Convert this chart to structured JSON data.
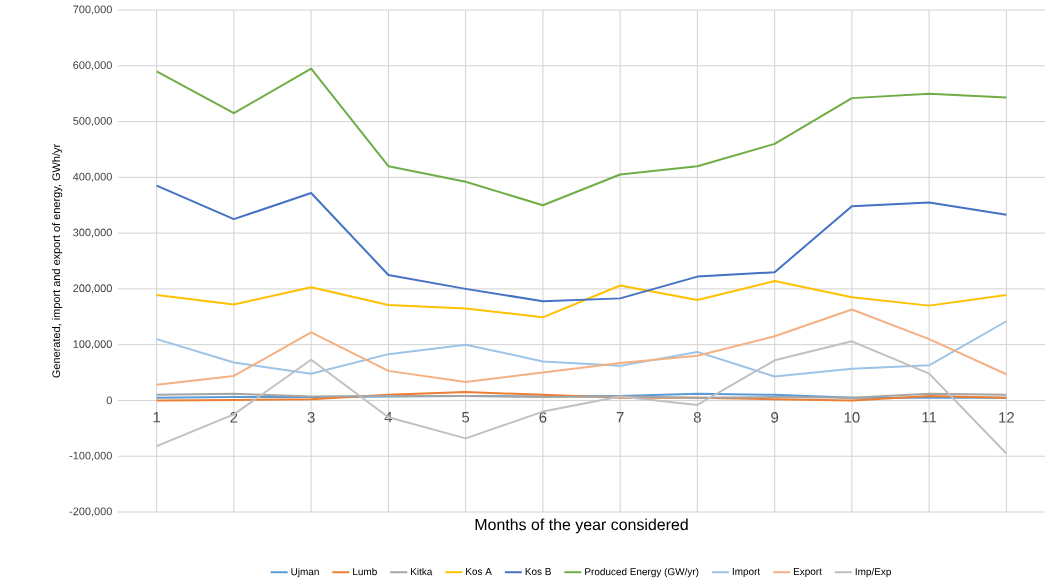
{
  "chart_data": {
    "type": "line",
    "xlabel": "Months of the year considered",
    "ylabel": "Generated, import and export of energy, GWh/yr",
    "categories": [
      "1",
      "2",
      "3",
      "4",
      "5",
      "6",
      "7",
      "8",
      "9",
      "10",
      "11",
      "12"
    ],
    "ylim": [
      -200000,
      700000
    ],
    "yticks": [
      {
        "value": -200000,
        "label": "-200,000"
      },
      {
        "value": -100000,
        "label": "-100,000"
      },
      {
        "value": 0,
        "label": "0"
      },
      {
        "value": 100000,
        "label": "100,000"
      },
      {
        "value": 200000,
        "label": "200,000"
      },
      {
        "value": 300000,
        "label": "300,000"
      },
      {
        "value": 400000,
        "label": "400,000"
      },
      {
        "value": 500000,
        "label": "500,000"
      },
      {
        "value": 600000,
        "label": "600,000"
      },
      {
        "value": 700000,
        "label": "700,000"
      }
    ],
    "grid": true,
    "legend": "bottom",
    "marker": "none",
    "line_style": "solid",
    "series": [
      {
        "name": "Ujman",
        "color": "#5b9bd5",
        "values": [
          5000,
          6000,
          6000,
          7000,
          8000,
          7000,
          8000,
          12000,
          10000,
          5000,
          5000,
          5000
        ]
      },
      {
        "name": "Lumb",
        "color": "#ed7d31",
        "values": [
          0,
          1000,
          2000,
          10000,
          15000,
          10000,
          5000,
          5000,
          2000,
          0,
          8000,
          5000
        ]
      },
      {
        "name": "Kitka",
        "color": "#a5a5a5",
        "values": [
          10000,
          12000,
          7000,
          8000,
          8000,
          6000,
          7000,
          5000,
          6000,
          5000,
          12000,
          10000
        ]
      },
      {
        "name": "Kos A",
        "color": "#ffc000",
        "values": [
          189000,
          172000,
          203000,
          171000,
          165000,
          149000,
          206000,
          180000,
          214000,
          185000,
          170000,
          189000
        ]
      },
      {
        "name": "Kos B",
        "color": "#4472c4",
        "values": [
          385000,
          325000,
          372000,
          225000,
          200000,
          178000,
          183000,
          222000,
          230000,
          348000,
          355000,
          333000
        ]
      },
      {
        "name": "Produced Energy (GW/yr)",
        "color": "#70ad47",
        "values": [
          590000,
          515000,
          595000,
          420000,
          392000,
          350000,
          405000,
          420000,
          460000,
          542000,
          550000,
          543000
        ]
      },
      {
        "name": "Import",
        "color": "#9dc3e6",
        "values": [
          110000,
          68000,
          48000,
          83000,
          100000,
          70000,
          62000,
          87000,
          43000,
          57000,
          63000,
          142000
        ]
      },
      {
        "name": "Export",
        "color": "#f4b183",
        "values": [
          28000,
          44000,
          122000,
          53000,
          33000,
          50000,
          67000,
          80000,
          115000,
          163000,
          110000,
          47000
        ]
      },
      {
        "name": "Imp/Exp",
        "color": "#c0c0c0",
        "values": [
          -82000,
          -25000,
          73000,
          -30000,
          -68000,
          -20000,
          7000,
          -8000,
          72000,
          106000,
          48000,
          -95000
        ]
      }
    ]
  }
}
